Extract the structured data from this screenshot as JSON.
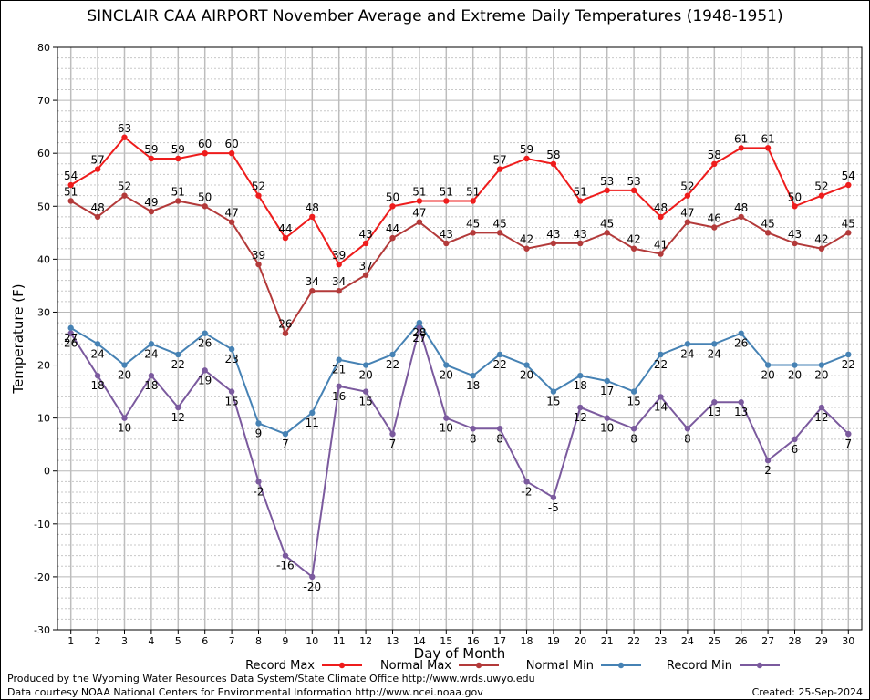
{
  "chart_data": {
    "type": "line",
    "title": "SINCLAIR CAA AIRPORT November Average and Extreme Daily Temperatures (1948-1951)",
    "xlabel": "Day of Month",
    "ylabel": "Temperature (F)",
    "xlim": [
      1,
      30
    ],
    "ylim": [
      -30,
      80
    ],
    "yticks": [
      -30,
      -20,
      -10,
      0,
      10,
      20,
      30,
      40,
      50,
      60,
      70,
      80
    ],
    "grid": true,
    "legend_position": "bottom",
    "x": [
      1,
      2,
      3,
      4,
      5,
      6,
      7,
      8,
      9,
      10,
      11,
      12,
      13,
      14,
      15,
      16,
      17,
      18,
      19,
      20,
      21,
      22,
      23,
      24,
      25,
      26,
      27,
      28,
      29,
      30
    ],
    "series": [
      {
        "name": "Record Max",
        "color": "#ee1c1c",
        "label_pos": "above",
        "values": [
          54,
          57,
          63,
          59,
          59,
          60,
          60,
          52,
          44,
          48,
          39,
          43,
          50,
          51,
          51,
          51,
          57,
          59,
          58,
          51,
          53,
          53,
          48,
          52,
          58,
          61,
          61,
          50,
          52,
          54
        ]
      },
      {
        "name": "Normal Max",
        "color": "#b33a3a",
        "label_pos": "above",
        "values": [
          51,
          48,
          52,
          49,
          51,
          50,
          47,
          39,
          26,
          34,
          34,
          37,
          44,
          47,
          43,
          45,
          45,
          42,
          43,
          43,
          45,
          42,
          41,
          47,
          46,
          48,
          45,
          43,
          42,
          45
        ]
      },
      {
        "name": "Normal Min",
        "color": "#4682b4",
        "label_pos": "below",
        "values": [
          27,
          24,
          20,
          24,
          22,
          26,
          23,
          9,
          7,
          11,
          21,
          20,
          22,
          28,
          20,
          18,
          22,
          20,
          15,
          18,
          17,
          15,
          22,
          24,
          24,
          26,
          20,
          20,
          20,
          22
        ]
      },
      {
        "name": "Record Min",
        "color": "#7b5a9e",
        "label_pos": "below",
        "values": [
          26,
          18,
          10,
          18,
          12,
          19,
          15,
          -2,
          -16,
          -20,
          16,
          15,
          7,
          27,
          10,
          8,
          8,
          -2,
          -5,
          12,
          10,
          8,
          14,
          8,
          13,
          13,
          2,
          6,
          12,
          7
        ]
      }
    ]
  },
  "footer": {
    "produced_by": "Produced by the Wyoming Water Resources Data System/State Climate Office http://www.wrds.uwyo.edu",
    "courtesy": "Data courtesy NOAA National Centers for Environmental Information http://www.ncei.noaa.gov",
    "created": "Created:  25-Sep-2024"
  }
}
